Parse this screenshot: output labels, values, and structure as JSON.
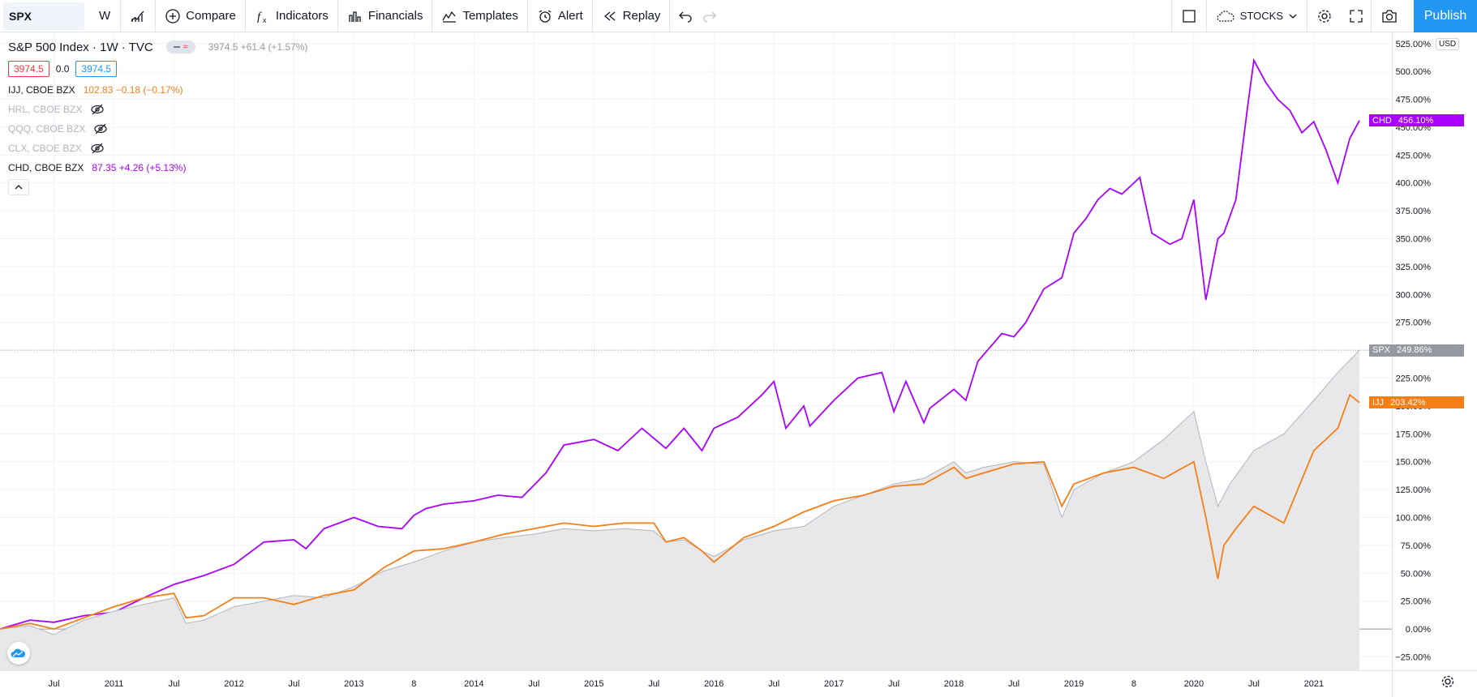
{
  "toolbar": {
    "symbol": "SPX",
    "interval": "W",
    "compare": "Compare",
    "indicators": "Indicators",
    "financials": "Financials",
    "templates": "Templates",
    "alert": "Alert",
    "replay": "Replay",
    "stocks": "STOCKS",
    "publish": "Publish"
  },
  "legend": {
    "title": "S&P 500 Index · 1W · TVC",
    "ohlc": "3974.5  +61.4 (+1.57%)",
    "bid": "3974.5",
    "spread": "0.0",
    "ask": "3974.5",
    "rows": [
      {
        "label": "IJJ, CBOE BZX",
        "value": "102.83  −0.18 (−0.17%)",
        "hidden": false,
        "color": "#f57f17"
      },
      {
        "label": "HRL, CBOE BZX",
        "value": "",
        "hidden": true,
        "color": "#b2b5be"
      },
      {
        "label": "QQQ, CBOE BZX",
        "value": "",
        "hidden": true,
        "color": "#b2b5be"
      },
      {
        "label": "CLX, CBOE BZX",
        "value": "",
        "hidden": true,
        "color": "#b2b5be"
      },
      {
        "label": "CHD, CBOE BZX",
        "value": "87.35  +4.26 (+5.13%)",
        "hidden": false,
        "color": "#aa00ff"
      }
    ]
  },
  "price_tags": {
    "chd": {
      "symbol": "CHD",
      "value": "456.10%",
      "color": "#aa00ff"
    },
    "spx": {
      "symbol": "SPX",
      "value": "249.86%",
      "color": "#9598a1"
    },
    "ijj": {
      "symbol": "IJJ",
      "value": "203.42%",
      "color": "#f57f17"
    }
  },
  "currency": "USD",
  "chart_data": {
    "type": "line",
    "y_unit": "% change",
    "ylim": [
      -37,
      535
    ],
    "y_ticks": [
      "525.00%",
      "500.00%",
      "475.00%",
      "450.00%",
      "425.00%",
      "400.00%",
      "375.00%",
      "350.00%",
      "325.00%",
      "300.00%",
      "275.00%",
      "250.00%",
      "225.00%",
      "200.00%",
      "175.00%",
      "150.00%",
      "125.00%",
      "100.00%",
      "75.00%",
      "50.00%",
      "25.00%",
      "0.00%",
      "−25.00%"
    ],
    "y_tick_values": [
      525,
      500,
      475,
      450,
      425,
      400,
      375,
      350,
      325,
      300,
      275,
      250,
      225,
      200,
      175,
      150,
      125,
      100,
      75,
      50,
      25,
      0,
      -25
    ],
    "x_ticks": [
      "Jul",
      "2011",
      "Jul",
      "2012",
      "Jul",
      "2013",
      "8",
      "2014",
      "Jul",
      "2015",
      "Jul",
      "2016",
      "Jul",
      "2017",
      "Jul",
      "2018",
      "Jul",
      "2019",
      "8",
      "2020",
      "Jul",
      "2021"
    ],
    "x_tick_values": [
      2010.5,
      2011,
      2011.5,
      2012,
      2012.5,
      2013,
      2013.5,
      2014,
      2014.5,
      2015,
      2015.5,
      2016,
      2016.5,
      2017,
      2017.5,
      2018,
      2018.5,
      2019,
      2019.5,
      2020,
      2020.5,
      2021
    ],
    "xlim": [
      2010.05,
      2021.65
    ],
    "series": [
      {
        "name": "CHD",
        "color": "#aa00ff",
        "x": [
          2010.05,
          2010.3,
          2010.5,
          2010.75,
          2011,
          2011.25,
          2011.5,
          2011.75,
          2012,
          2012.25,
          2012.5,
          2012.6,
          2012.75,
          2013,
          2013.2,
          2013.4,
          2013.5,
          2013.6,
          2013.75,
          2014,
          2014.2,
          2014.4,
          2014.6,
          2014.75,
          2015,
          2015.2,
          2015.4,
          2015.6,
          2015.75,
          2015.9,
          2016.0,
          2016.2,
          2016.4,
          2016.5,
          2016.6,
          2016.75,
          2016.8,
          2017.0,
          2017.2,
          2017.4,
          2017.5,
          2017.6,
          2017.75,
          2017.8,
          2018.0,
          2018.1,
          2018.2,
          2018.4,
          2018.5,
          2018.6,
          2018.75,
          2018.9,
          2019.0,
          2019.1,
          2019.2,
          2019.3,
          2019.4,
          2019.55,
          2019.65,
          2019.8,
          2019.9,
          2020.0,
          2020.1,
          2020.2,
          2020.25,
          2020.35,
          2020.45,
          2020.5,
          2020.6,
          2020.7,
          2020.8,
          2020.9,
          2021.0,
          2021.1,
          2021.2,
          2021.3,
          2021.38
        ],
        "y": [
          0,
          8,
          6,
          12,
          15,
          28,
          40,
          48,
          58,
          78,
          80,
          72,
          90,
          100,
          92,
          90,
          102,
          108,
          112,
          115,
          120,
          118,
          140,
          165,
          170,
          160,
          180,
          162,
          180,
          160,
          180,
          190,
          210,
          222,
          180,
          200,
          182,
          205,
          225,
          230,
          195,
          222,
          185,
          198,
          215,
          205,
          240,
          265,
          262,
          275,
          305,
          315,
          355,
          368,
          385,
          395,
          390,
          405,
          355,
          345,
          350,
          385,
          295,
          350,
          355,
          385,
          470,
          510,
          490,
          475,
          465,
          445,
          455,
          430,
          400,
          440,
          456
        ]
      },
      {
        "name": "SPX",
        "color": "#b2b5be",
        "x": [
          2010.05,
          2010.3,
          2010.5,
          2010.75,
          2011,
          2011.25,
          2011.5,
          2011.6,
          2011.75,
          2012,
          2012.25,
          2012.5,
          2012.75,
          2013,
          2013.25,
          2013.5,
          2013.75,
          2014,
          2014.25,
          2014.5,
          2014.75,
          2015,
          2015.25,
          2015.5,
          2015.6,
          2015.75,
          2015.9,
          2016.0,
          2016.25,
          2016.5,
          2016.75,
          2017,
          2017.25,
          2017.5,
          2017.75,
          2018,
          2018.1,
          2018.25,
          2018.5,
          2018.75,
          2018.9,
          2019,
          2019.25,
          2019.5,
          2019.75,
          2020,
          2020.1,
          2020.2,
          2020.3,
          2020.5,
          2020.75,
          2021,
          2021.2,
          2021.38
        ],
        "y": [
          0,
          3,
          -5,
          8,
          16,
          22,
          28,
          5,
          8,
          20,
          25,
          30,
          28,
          38,
          52,
          60,
          70,
          78,
          82,
          85,
          90,
          88,
          90,
          88,
          78,
          80,
          70,
          65,
          80,
          88,
          92,
          110,
          120,
          130,
          135,
          150,
          140,
          145,
          150,
          148,
          100,
          125,
          140,
          150,
          170,
          195,
          150,
          110,
          130,
          160,
          175,
          205,
          230,
          250
        ]
      },
      {
        "name": "IJJ",
        "color": "#f57f17",
        "x": [
          2010.05,
          2010.3,
          2010.5,
          2010.75,
          2011,
          2011.25,
          2011.5,
          2011.6,
          2011.75,
          2012,
          2012.25,
          2012.5,
          2012.75,
          2013,
          2013.25,
          2013.5,
          2013.75,
          2014,
          2014.25,
          2014.5,
          2014.75,
          2015,
          2015.25,
          2015.5,
          2015.6,
          2015.75,
          2015.9,
          2016.0,
          2016.25,
          2016.5,
          2016.75,
          2017,
          2017.25,
          2017.5,
          2017.75,
          2018,
          2018.1,
          2018.25,
          2018.5,
          2018.75,
          2018.9,
          2019,
          2019.25,
          2019.5,
          2019.75,
          2020,
          2020.1,
          2020.2,
          2020.25,
          2020.35,
          2020.5,
          2020.75,
          2021,
          2021.2,
          2021.3,
          2021.38
        ],
        "y": [
          0,
          5,
          0,
          10,
          20,
          28,
          32,
          10,
          12,
          28,
          28,
          22,
          30,
          35,
          55,
          70,
          72,
          78,
          85,
          90,
          95,
          92,
          95,
          95,
          78,
          82,
          70,
          60,
          82,
          92,
          105,
          115,
          120,
          128,
          130,
          145,
          135,
          140,
          148,
          150,
          110,
          130,
          140,
          145,
          135,
          150,
          100,
          45,
          75,
          90,
          110,
          95,
          160,
          180,
          210,
          203
        ]
      }
    ]
  }
}
